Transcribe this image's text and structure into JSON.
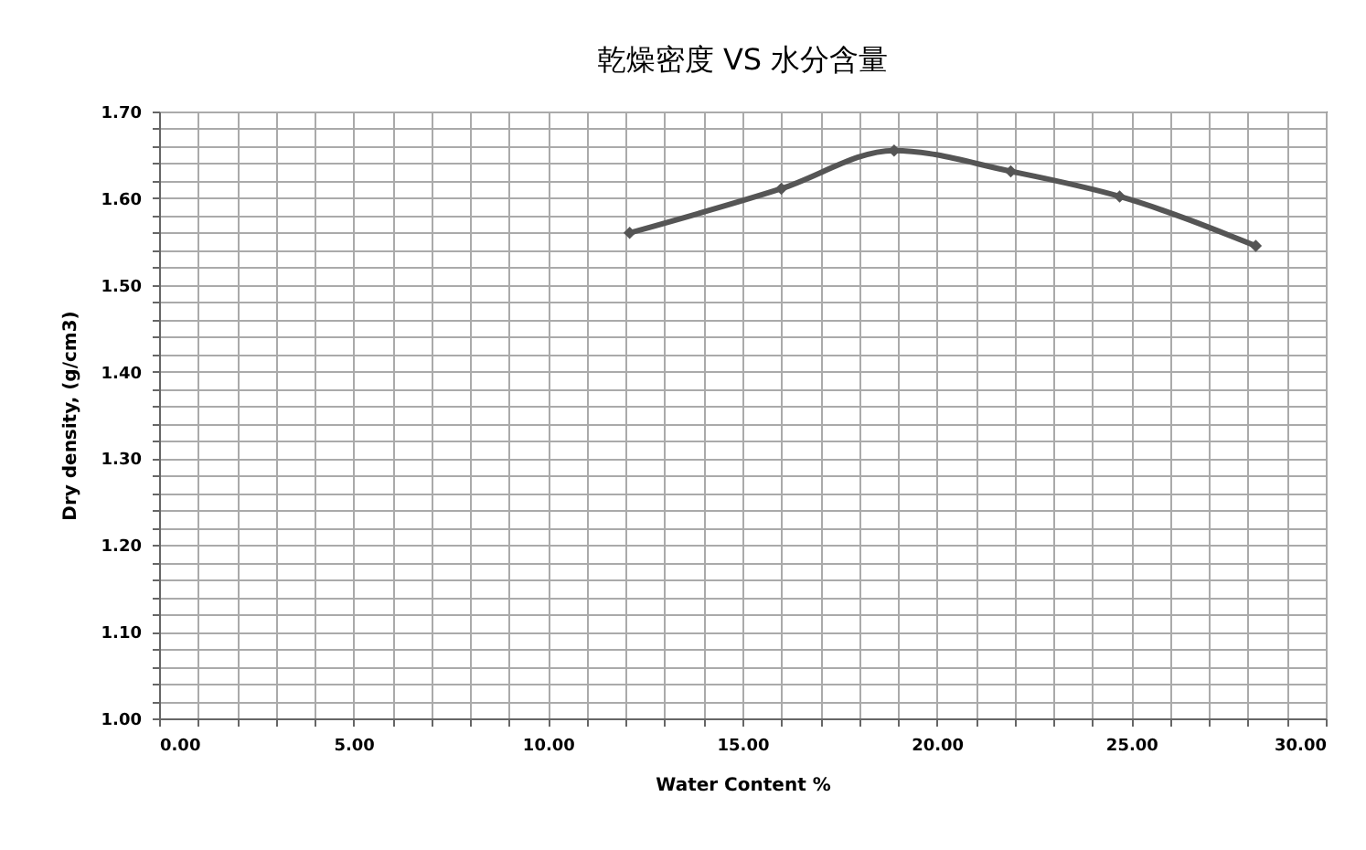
{
  "chart_data": {
    "type": "line",
    "title": "乾燥密度 VS 水分含量",
    "xlabel": "Water Content %",
    "ylabel": "Dry density,  (g/cm3)",
    "x": [
      12.1,
      16.0,
      18.9,
      21.9,
      24.7,
      28.2
    ],
    "series": [
      {
        "color": "#555555",
        "values": [
          1.56,
          1.611,
          1.655,
          1.631,
          1.602,
          1.545
        ]
      }
    ],
    "marker": "diamond",
    "line_style": "solid",
    "grid": true,
    "xlim": [
      0,
      30
    ],
    "ylim": [
      1.0,
      1.7
    ],
    "xticks": [
      {
        "value": 0,
        "label": "0.00"
      },
      {
        "value": 1,
        "label": null
      },
      {
        "value": 2,
        "label": null
      },
      {
        "value": 3,
        "label": null
      },
      {
        "value": 4,
        "label": null
      },
      {
        "value": 5,
        "label": "5.00"
      },
      {
        "value": 6,
        "label": null
      },
      {
        "value": 7,
        "label": null
      },
      {
        "value": 8,
        "label": null
      },
      {
        "value": 9,
        "label": null
      },
      {
        "value": 10,
        "label": "10.00"
      },
      {
        "value": 11,
        "label": null
      },
      {
        "value": 12,
        "label": null
      },
      {
        "value": 13,
        "label": null
      },
      {
        "value": 14,
        "label": null
      },
      {
        "value": 15,
        "label": "15.00"
      },
      {
        "value": 16,
        "label": null
      },
      {
        "value": 17,
        "label": null
      },
      {
        "value": 18,
        "label": null
      },
      {
        "value": 19,
        "label": null
      },
      {
        "value": 20,
        "label": "20.00"
      },
      {
        "value": 21,
        "label": null
      },
      {
        "value": 22,
        "label": null
      },
      {
        "value": 23,
        "label": null
      },
      {
        "value": 24,
        "label": null
      },
      {
        "value": 25,
        "label": "25.00"
      },
      {
        "value": 26,
        "label": null
      },
      {
        "value": 27,
        "label": null
      },
      {
        "value": 28,
        "label": null
      },
      {
        "value": 29,
        "label": null
      },
      {
        "value": 30,
        "label": "30.00"
      }
    ],
    "yticks": [
      {
        "value": 1.0,
        "label": "1.00"
      },
      {
        "value": 1.02,
        "label": null
      },
      {
        "value": 1.04,
        "label": null
      },
      {
        "value": 1.06,
        "label": null
      },
      {
        "value": 1.08,
        "label": null
      },
      {
        "value": 1.1,
        "label": "1.10"
      },
      {
        "value": 1.12,
        "label": null
      },
      {
        "value": 1.14,
        "label": null
      },
      {
        "value": 1.16,
        "label": null
      },
      {
        "value": 1.18,
        "label": null
      },
      {
        "value": 1.2,
        "label": "1.20"
      },
      {
        "value": 1.22,
        "label": null
      },
      {
        "value": 1.24,
        "label": null
      },
      {
        "value": 1.26,
        "label": null
      },
      {
        "value": 1.28,
        "label": null
      },
      {
        "value": 1.3,
        "label": "1.30"
      },
      {
        "value": 1.32,
        "label": null
      },
      {
        "value": 1.34,
        "label": null
      },
      {
        "value": 1.36,
        "label": null
      },
      {
        "value": 1.38,
        "label": null
      },
      {
        "value": 1.4,
        "label": "1.40"
      },
      {
        "value": 1.42,
        "label": null
      },
      {
        "value": 1.44,
        "label": null
      },
      {
        "value": 1.46,
        "label": null
      },
      {
        "value": 1.48,
        "label": null
      },
      {
        "value": 1.5,
        "label": "1.50"
      },
      {
        "value": 1.52,
        "label": null
      },
      {
        "value": 1.54,
        "label": null
      },
      {
        "value": 1.56,
        "label": null
      },
      {
        "value": 1.58,
        "label": null
      },
      {
        "value": 1.6,
        "label": "1.60"
      },
      {
        "value": 1.62,
        "label": null
      },
      {
        "value": 1.64,
        "label": null
      },
      {
        "value": 1.66,
        "label": null
      },
      {
        "value": 1.68,
        "label": null
      },
      {
        "value": 1.7,
        "label": "1.70"
      }
    ]
  }
}
